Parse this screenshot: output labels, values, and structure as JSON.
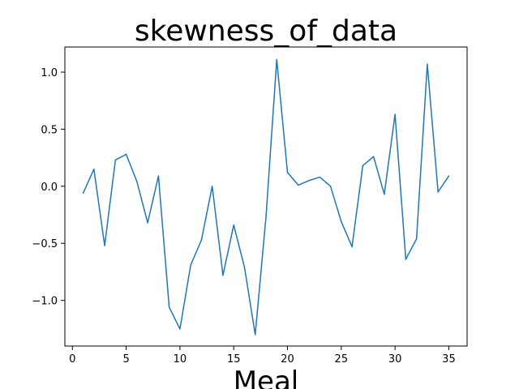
{
  "chart_data": {
    "type": "line",
    "title": "skewness_of_data",
    "xlabel": "Meal",
    "ylabel": "",
    "xlim": [
      -0.7,
      36.7
    ],
    "ylim": [
      -1.4,
      1.22
    ],
    "xticks": [
      0,
      5,
      10,
      15,
      20,
      25,
      30,
      35
    ],
    "yticks": [
      -1.0,
      -0.5,
      0.0,
      0.5,
      1.0
    ],
    "ytick_labels": [
      "−1.0",
      "−0.5",
      "0.0",
      "0.5",
      "1.0"
    ],
    "grid": false,
    "line_color": "#1f77b4",
    "series": [
      {
        "x": [
          1,
          2,
          3,
          4,
          5,
          6,
          7,
          8,
          9,
          10,
          11,
          12,
          13,
          14,
          15,
          16,
          17,
          18,
          19,
          20,
          21,
          22,
          23,
          24,
          25,
          26,
          27,
          28,
          29,
          30,
          31,
          32,
          33,
          34,
          35
        ],
        "values": [
          -0.06,
          0.15,
          -0.52,
          0.23,
          0.28,
          0.04,
          -0.32,
          0.09,
          -1.06,
          -1.25,
          -0.69,
          -0.47,
          0.0,
          -0.78,
          -0.34,
          -0.71,
          -1.3,
          -0.27,
          1.11,
          0.12,
          0.01,
          0.05,
          0.08,
          0.0,
          -0.31,
          -0.53,
          0.18,
          0.26,
          -0.07,
          0.63,
          -0.64,
          -0.46,
          1.07,
          -0.05,
          0.09
        ]
      }
    ]
  }
}
